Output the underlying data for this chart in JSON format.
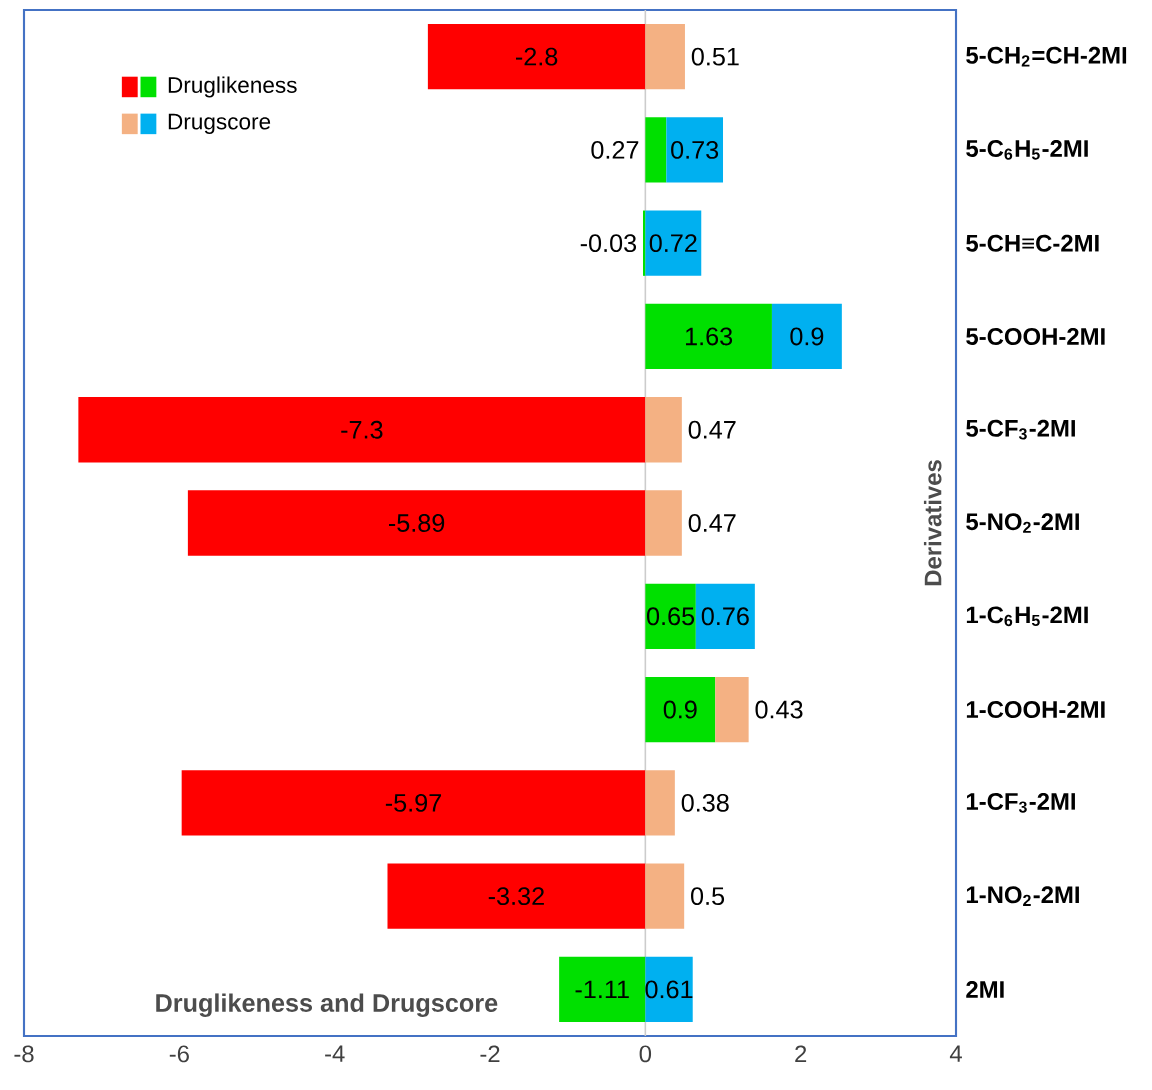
{
  "chart_data": {
    "type": "bar",
    "orientation": "horizontal",
    "stacked": true,
    "data_labels": true,
    "legend": "top left",
    "ylabel": "Derivatives",
    "annotations": [
      "**Druglikeness and Drugscore**"
    ],
    "categories": [
      "5-CH$_{2}$=CH-2MI",
      "5-C$_{6}$H$_{5}$-2MI",
      "5-CH≡C-2MI",
      "5-COOH-2MI",
      "5-CF$_{3}$-2MI",
      "5-NO$_{2}$-2MI",
      "1-C$_{6}$H$_{5}$-2MI",
      "1-COOH-2MI",
      "1-CF$_{3}$-2MI",
      "1-NO$_{2}$-2MI",
      "2MI"
    ],
    "xlim": [
      -8,
      4
    ],
    "xticks": [
      -8,
      -6,
      -4,
      -2,
      0,
      2,
      4
    ],
    "series": [
      {
        "name": "Druglikeness",
        "color": "#ff0000",
        "values": [
          -2.8,
          0.27,
          -0.03,
          1.63,
          -7.3,
          -5.89,
          0.65,
          0.9,
          -5.97,
          -3.32,
          -1.11
        ],
        "colors": [
          "#ff0000",
          "#00e000",
          "#00e000",
          "#00e000",
          "#ff0000",
          "#ff0000",
          "#00e000",
          "#00e000",
          "#ff0000",
          "#ff0000",
          "#00e000"
        ]
      },
      {
        "name": "Drugscore",
        "color": "#f4b183",
        "values": [
          0.51,
          0.73,
          0.72,
          0.9,
          0.47,
          0.47,
          0.76,
          0.43,
          0.38,
          0.5,
          0.61
        ],
        "colors": [
          "#f4b183",
          "#00b0f0",
          "#00b0f0",
          "#00b0f0",
          "#f4b183",
          "#f4b183",
          "#00b0f0",
          "#f4b183",
          "#f4b183",
          "#f4b183",
          "#00b0f0"
        ]
      }
    ]
  }
}
